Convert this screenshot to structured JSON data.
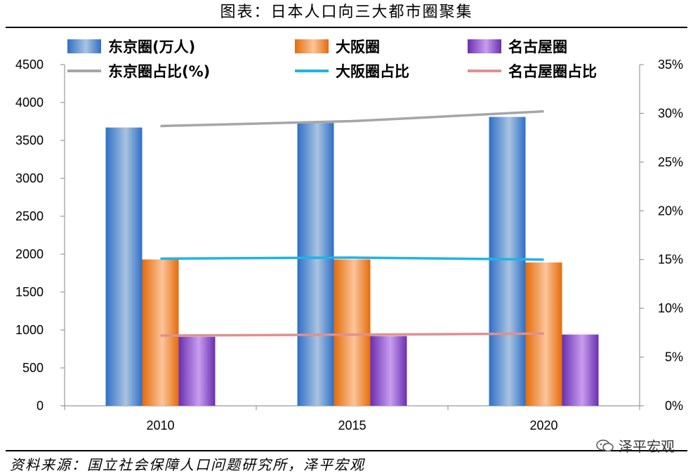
{
  "title": "图表：日本人口向三大都市圈聚集",
  "source": "资料来源：国立社会保障人口问题研究所，泽平宏观",
  "watermark": "泽平宏观",
  "watermark_icon": "wechat-icon",
  "chart_data": {
    "type": "bar",
    "categories": [
      "2010",
      "2015",
      "2020"
    ],
    "series": [
      {
        "name": "东京圈(万人)",
        "type": "bar",
        "axis": "left",
        "color": "#4f81bd",
        "values": [
          3670,
          3730,
          3810
        ]
      },
      {
        "name": "大阪圈",
        "type": "bar",
        "axis": "left",
        "color": "#f79646",
        "values": [
          1930,
          1930,
          1890
        ]
      },
      {
        "name": "名古屋圈",
        "type": "bar",
        "axis": "left",
        "color": "#8e5bd0",
        "values": [
          910,
          920,
          940
        ]
      },
      {
        "name": "东京圈占比(%)",
        "type": "line",
        "axis": "right",
        "color": "#a6a6a6",
        "values": [
          28.7,
          29.2,
          30.2
        ]
      },
      {
        "name": "大阪圈占比",
        "type": "line",
        "axis": "right",
        "color": "#1fb4e6",
        "values": [
          15.1,
          15.2,
          15.0
        ]
      },
      {
        "name": "名古屋圈占比",
        "type": "line",
        "axis": "right",
        "color": "#e09090",
        "values": [
          7.2,
          7.3,
          7.4
        ]
      }
    ],
    "left_axis": {
      "min": 0,
      "max": 4500,
      "ticks": [
        "0",
        "500",
        "1000",
        "1500",
        "2000",
        "2500",
        "3000",
        "3500",
        "4000",
        "4500"
      ]
    },
    "right_axis": {
      "min": 0,
      "max": 35,
      "ticks": [
        "0%",
        "5%",
        "10%",
        "15%",
        "20%",
        "25%",
        "30%",
        "35%"
      ]
    },
    "legend_position": "top",
    "grid": false
  }
}
